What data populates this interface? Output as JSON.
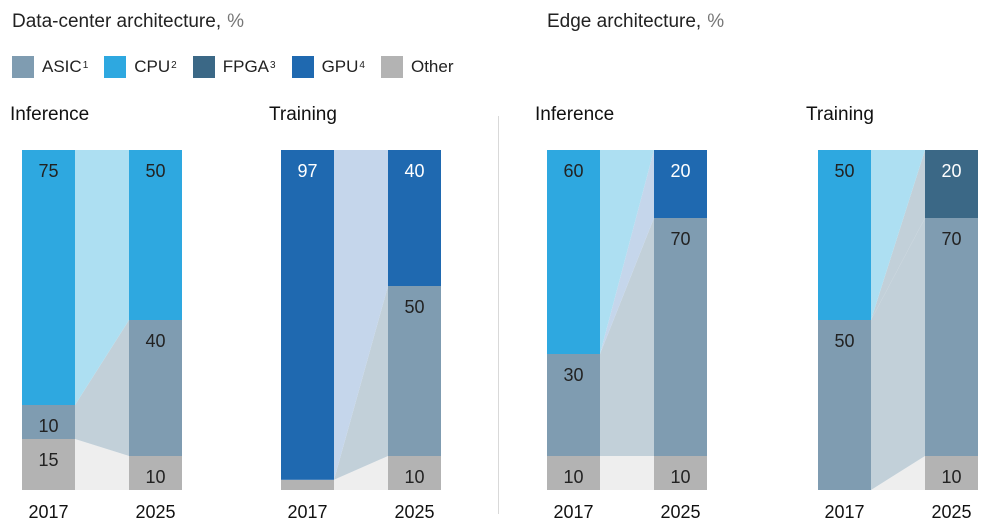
{
  "sections": [
    {
      "title": "Data-center architecture,",
      "unit": "%"
    },
    {
      "title": "Edge architecture,",
      "unit": "%"
    }
  ],
  "legend": [
    {
      "label": "ASIC",
      "note": "1",
      "color": "#7f9cb1"
    },
    {
      "label": "CPU",
      "note": "2",
      "color": "#2ea8e0"
    },
    {
      "label": "FPGA",
      "note": "3",
      "color": "#3b6886"
    },
    {
      "label": "GPU",
      "note": "4",
      "color": "#1f69b0"
    },
    {
      "label": "Other",
      "note": "",
      "color": "#b3b3b3"
    }
  ],
  "chart_data": [
    {
      "type": "bar",
      "title": "Inference",
      "section": "Data-center architecture",
      "categories": [
        "2017",
        "2025"
      ],
      "stack_order": [
        "Other",
        "ASIC",
        "FPGA",
        "GPU",
        "CPU"
      ],
      "series": [
        {
          "name": "Other",
          "values": [
            15,
            10
          ],
          "labels": [
            "15",
            "10"
          ]
        },
        {
          "name": "ASIC",
          "values": [
            10,
            40
          ],
          "labels": [
            "10",
            "40"
          ]
        },
        {
          "name": "CPU",
          "values": [
            75,
            50
          ],
          "labels": [
            "75",
            "50"
          ]
        }
      ],
      "ylim": [
        0,
        100
      ]
    },
    {
      "type": "bar",
      "title": "Training",
      "section": "Data-center architecture",
      "categories": [
        "2017",
        "2025"
      ],
      "stack_order": [
        "Other",
        "ASIC",
        "FPGA",
        "GPU",
        "CPU"
      ],
      "series": [
        {
          "name": "Other",
          "values": [
            3,
            10
          ],
          "labels": [
            "",
            "10"
          ]
        },
        {
          "name": "GPU",
          "values": [
            97,
            40
          ],
          "labels": [
            "97",
            "40"
          ]
        },
        {
          "name": "ASIC",
          "values": [
            0,
            50
          ],
          "labels": [
            "",
            "50"
          ]
        }
      ],
      "ylim": [
        0,
        100
      ]
    },
    {
      "type": "bar",
      "title": "Inference",
      "section": "Edge architecture",
      "categories": [
        "2017",
        "2025"
      ],
      "stack_order": [
        "Other",
        "ASIC",
        "FPGA",
        "GPU",
        "CPU"
      ],
      "series": [
        {
          "name": "Other",
          "values": [
            10,
            10
          ],
          "labels": [
            "10",
            "10"
          ]
        },
        {
          "name": "GPU",
          "values": [
            0,
            20
          ],
          "labels": [
            "",
            "20"
          ]
        },
        {
          "name": "ASIC",
          "values": [
            30,
            70
          ],
          "labels": [
            "30",
            "70"
          ]
        },
        {
          "name": "CPU",
          "values": [
            60,
            0
          ],
          "labels": [
            "60",
            ""
          ]
        }
      ],
      "ylim": [
        0,
        100
      ]
    },
    {
      "type": "bar",
      "title": "Training",
      "section": "Edge architecture",
      "categories": [
        "2017",
        "2025"
      ],
      "stack_order": [
        "Other",
        "ASIC",
        "FPGA",
        "GPU",
        "CPU"
      ],
      "series": [
        {
          "name": "Other",
          "values": [
            0,
            10
          ],
          "labels": [
            "",
            "10"
          ]
        },
        {
          "name": "FPGA",
          "values": [
            0,
            20
          ],
          "labels": [
            "",
            "20"
          ]
        },
        {
          "name": "ASIC",
          "values": [
            50,
            70
          ],
          "labels": [
            "50",
            "70"
          ]
        },
        {
          "name": "CPU",
          "values": [
            50,
            0
          ],
          "labels": [
            "50",
            ""
          ]
        }
      ],
      "ylim": [
        0,
        100
      ]
    }
  ]
}
